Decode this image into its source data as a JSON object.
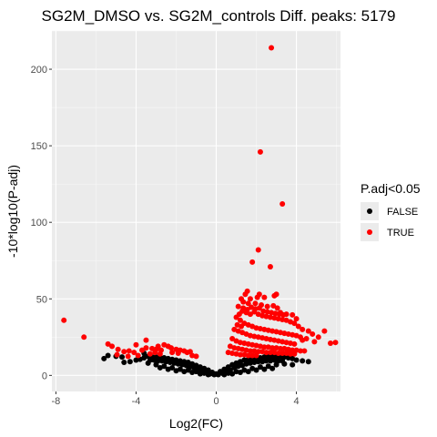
{
  "chart_data": {
    "type": "scatter",
    "title": "SG2M_DMSO vs. SG2M_controls Diff. peaks: 5179",
    "xlabel": "Log2(FC)",
    "ylabel": "-10*log10(P-adj)",
    "xlim": [
      -8.2,
      6.2
    ],
    "ylim": [
      -10.5,
      225
    ],
    "xticks": [
      -8,
      -4,
      0,
      4
    ],
    "yticks": [
      0,
      50,
      100,
      150,
      200
    ],
    "grid": true,
    "background": "#ebebeb",
    "legend": {
      "title": "P.adj<0.05",
      "placement": "right",
      "entries": [
        "FALSE",
        "TRUE"
      ]
    },
    "series": [
      {
        "name": "FALSE",
        "color": "#000000",
        "points": [
          [
            0.0,
            1.0
          ],
          [
            0.2,
            2.5
          ],
          [
            -0.2,
            2.0
          ],
          [
            0.4,
            4.0
          ],
          [
            -0.4,
            3.5
          ],
          [
            0.6,
            5.5
          ],
          [
            -0.6,
            4.5
          ],
          [
            0.8,
            7.0
          ],
          [
            -0.8,
            5.5
          ],
          [
            1.0,
            8.0
          ],
          [
            -1.0,
            6.5
          ],
          [
            1.2,
            9.0
          ],
          [
            -1.2,
            7.5
          ],
          [
            1.4,
            10.0
          ],
          [
            -1.4,
            8.5
          ],
          [
            1.6,
            10.5
          ],
          [
            -1.6,
            9.0
          ],
          [
            1.8,
            11.0
          ],
          [
            -1.8,
            9.5
          ],
          [
            2.0,
            11.5
          ],
          [
            -2.0,
            10.0
          ],
          [
            2.2,
            11.5
          ],
          [
            -2.2,
            10.5
          ],
          [
            2.4,
            12.0
          ],
          [
            -2.4,
            11.0
          ],
          [
            2.6,
            12.0
          ],
          [
            -2.6,
            11.5
          ],
          [
            2.8,
            12.5
          ],
          [
            -2.8,
            11.5
          ],
          [
            3.0,
            12.0
          ],
          [
            -3.0,
            12.0
          ],
          [
            3.2,
            12.5
          ],
          [
            -3.2,
            12.0
          ],
          [
            3.4,
            12.0
          ],
          [
            -3.4,
            12.5
          ],
          [
            3.6,
            11.5
          ],
          [
            -3.6,
            11.5
          ],
          [
            3.8,
            11.0
          ],
          [
            -3.8,
            10.5
          ],
          [
            4.0,
            10.0
          ],
          [
            -4.0,
            10.0
          ],
          [
            4.3,
            9.5
          ],
          [
            -4.3,
            9.0
          ],
          [
            4.6,
            9.0
          ],
          [
            -4.6,
            8.5
          ],
          [
            3.8,
            7.0
          ],
          [
            -5.4,
            13.0
          ],
          [
            -5.6,
            11.0
          ],
          [
            -3.6,
            14.5
          ],
          [
            -5.0,
            12.5
          ],
          [
            -4.7,
            12.0
          ],
          [
            0.3,
            1.5
          ],
          [
            -0.3,
            1.0
          ],
          [
            0.5,
            3.0
          ],
          [
            -0.5,
            2.5
          ],
          [
            0.7,
            3.5
          ],
          [
            -0.7,
            3.0
          ],
          [
            0.9,
            5.0
          ],
          [
            -0.9,
            4.0
          ],
          [
            1.1,
            6.0
          ],
          [
            -1.1,
            5.0
          ],
          [
            1.3,
            6.5
          ],
          [
            -1.3,
            5.5
          ],
          [
            1.5,
            7.5
          ],
          [
            -1.5,
            6.5
          ],
          [
            1.7,
            8.0
          ],
          [
            -1.7,
            7.0
          ],
          [
            1.9,
            8.5
          ],
          [
            -1.9,
            7.5
          ],
          [
            2.1,
            9.0
          ],
          [
            -2.1,
            8.0
          ],
          [
            2.3,
            9.0
          ],
          [
            -2.3,
            8.5
          ],
          [
            2.5,
            9.5
          ],
          [
            -2.5,
            9.0
          ],
          [
            2.7,
            9.5
          ],
          [
            -2.7,
            9.5
          ],
          [
            2.9,
            10.0
          ],
          [
            -2.9,
            9.5
          ],
          [
            3.1,
            9.5
          ],
          [
            -3.1,
            10.0
          ],
          [
            3.3,
            9.5
          ],
          [
            -3.3,
            10.0
          ],
          [
            0.1,
            0.5
          ],
          [
            -0.1,
            0.5
          ],
          [
            0.6,
            1.5
          ],
          [
            -0.6,
            1.5
          ],
          [
            1.0,
            2.5
          ],
          [
            -1.0,
            2.5
          ],
          [
            1.4,
            3.5
          ],
          [
            -1.4,
            3.5
          ],
          [
            1.8,
            4.5
          ],
          [
            -1.8,
            4.0
          ],
          [
            2.2,
            5.5
          ],
          [
            -2.2,
            5.0
          ],
          [
            2.6,
            6.0
          ],
          [
            -2.6,
            6.0
          ],
          [
            3.0,
            7.0
          ],
          [
            -3.0,
            7.0
          ],
          [
            3.4,
            7.5
          ],
          [
            -3.4,
            8.0
          ],
          [
            0.8,
            1.0
          ],
          [
            -0.8,
            1.0
          ],
          [
            1.2,
            2.0
          ],
          [
            -1.2,
            2.0
          ],
          [
            1.6,
            2.5
          ],
          [
            -1.6,
            2.5
          ],
          [
            2.0,
            3.5
          ],
          [
            -2.0,
            3.0
          ],
          [
            2.4,
            4.0
          ],
          [
            -2.4,
            4.0
          ],
          [
            2.8,
            4.5
          ],
          [
            -2.8,
            5.0
          ],
          [
            0.4,
            0.5
          ],
          [
            -0.4,
            0.5
          ]
        ]
      },
      {
        "name": "TRUE",
        "color": "#ff0000",
        "points": [
          [
            2.75,
            214.0
          ],
          [
            2.2,
            146.0
          ],
          [
            3.3,
            112.0
          ],
          [
            2.1,
            82.0
          ],
          [
            1.8,
            74.0
          ],
          [
            2.7,
            71.0
          ],
          [
            1.55,
            55.0
          ],
          [
            1.45,
            53.0
          ],
          [
            2.15,
            53.0
          ],
          [
            2.05,
            51.0
          ],
          [
            2.4,
            51.0
          ],
          [
            3.0,
            53.0
          ],
          [
            2.9,
            52.0
          ],
          [
            1.7,
            50.0
          ],
          [
            1.25,
            50.0
          ],
          [
            1.35,
            48.0
          ],
          [
            1.6,
            47.0
          ],
          [
            1.95,
            47.0
          ],
          [
            2.25,
            46.0
          ],
          [
            2.55,
            45.0
          ],
          [
            2.85,
            45.5
          ],
          [
            3.05,
            44.0
          ],
          [
            1.1,
            45.0
          ],
          [
            1.3,
            42.0
          ],
          [
            1.5,
            41.0
          ],
          [
            1.7,
            40.0
          ],
          [
            1.9,
            41.5
          ],
          [
            2.1,
            40.0
          ],
          [
            2.3,
            39.0
          ],
          [
            2.5,
            38.5
          ],
          [
            2.7,
            38.0
          ],
          [
            2.9,
            37.5
          ],
          [
            3.1,
            37.0
          ],
          [
            3.3,
            36.5
          ],
          [
            3.5,
            36.0
          ],
          [
            3.7,
            35.0
          ],
          [
            3.9,
            34.0
          ],
          [
            4.1,
            32.0
          ],
          [
            4.3,
            30.0
          ],
          [
            3.5,
            40.0
          ],
          [
            3.8,
            39.5
          ],
          [
            4.0,
            37.0
          ],
          [
            3.2,
            41.0
          ],
          [
            4.6,
            29.0
          ],
          [
            4.8,
            27.0
          ],
          [
            5.4,
            29.0
          ],
          [
            5.1,
            25.0
          ],
          [
            5.7,
            21.0
          ],
          [
            5.95,
            21.5
          ],
          [
            4.5,
            24.0
          ],
          [
            4.9,
            22.0
          ],
          [
            4.3,
            23.0
          ],
          [
            1.0,
            38.0
          ],
          [
            1.2,
            36.0
          ],
          [
            1.4,
            34.0
          ],
          [
            1.6,
            33.0
          ],
          [
            1.8,
            32.0
          ],
          [
            2.0,
            31.0
          ],
          [
            2.2,
            30.5
          ],
          [
            2.4,
            30.0
          ],
          [
            2.6,
            29.5
          ],
          [
            2.8,
            29.0
          ],
          [
            3.0,
            28.5
          ],
          [
            3.2,
            28.0
          ],
          [
            3.4,
            27.5
          ],
          [
            3.6,
            27.0
          ],
          [
            3.8,
            26.5
          ],
          [
            4.0,
            26.0
          ],
          [
            4.2,
            25.0
          ],
          [
            0.9,
            30.0
          ],
          [
            1.1,
            29.0
          ],
          [
            1.3,
            28.0
          ],
          [
            1.5,
            27.0
          ],
          [
            1.7,
            26.0
          ],
          [
            1.9,
            25.5
          ],
          [
            2.1,
            25.0
          ],
          [
            2.3,
            24.5
          ],
          [
            2.5,
            24.0
          ],
          [
            2.7,
            23.5
          ],
          [
            2.9,
            23.0
          ],
          [
            3.1,
            22.5
          ],
          [
            3.3,
            22.0
          ],
          [
            3.5,
            21.5
          ],
          [
            3.7,
            21.0
          ],
          [
            3.9,
            20.5
          ],
          [
            0.8,
            24.0
          ],
          [
            1.0,
            22.5
          ],
          [
            1.2,
            21.5
          ],
          [
            1.4,
            21.0
          ],
          [
            1.6,
            20.5
          ],
          [
            1.8,
            20.0
          ],
          [
            2.0,
            19.5
          ],
          [
            2.2,
            19.0
          ],
          [
            2.4,
            18.5
          ],
          [
            2.6,
            18.5
          ],
          [
            2.8,
            18.0
          ],
          [
            3.0,
            18.0
          ],
          [
            3.2,
            17.5
          ],
          [
            3.4,
            17.5
          ],
          [
            3.6,
            17.0
          ],
          [
            3.8,
            16.5
          ],
          [
            4.0,
            16.5
          ],
          [
            4.2,
            16.0
          ],
          [
            4.4,
            16.0
          ],
          [
            0.7,
            19.0
          ],
          [
            0.9,
            18.0
          ],
          [
            1.1,
            17.5
          ],
          [
            1.3,
            17.0
          ],
          [
            1.5,
            16.5
          ],
          [
            1.7,
            16.0
          ],
          [
            1.9,
            16.0
          ],
          [
            2.1,
            15.5
          ],
          [
            2.3,
            15.5
          ],
          [
            2.5,
            15.0
          ],
          [
            2.7,
            15.0
          ],
          [
            2.9,
            15.0
          ],
          [
            3.1,
            14.5
          ],
          [
            3.3,
            14.5
          ],
          [
            3.5,
            14.5
          ],
          [
            3.7,
            14.0
          ],
          [
            3.9,
            14.0
          ],
          [
            0.6,
            15.0
          ],
          [
            0.8,
            14.5
          ],
          [
            1.0,
            14.0
          ],
          [
            1.2,
            13.5
          ],
          [
            1.4,
            13.5
          ],
          [
            1.6,
            13.0
          ],
          [
            1.8,
            13.0
          ],
          [
            2.0,
            13.0
          ],
          [
            1.35,
            44.0
          ],
          [
            1.55,
            43.0
          ],
          [
            1.75,
            44.5
          ],
          [
            1.95,
            43.5
          ],
          [
            2.15,
            44.0
          ],
          [
            2.35,
            42.0
          ],
          [
            2.55,
            41.5
          ],
          [
            2.75,
            41.0
          ],
          [
            2.95,
            40.5
          ],
          [
            3.15,
            40.0
          ],
          [
            3.35,
            39.5
          ],
          [
            1.15,
            40.0
          ],
          [
            1.05,
            33.0
          ],
          [
            1.25,
            32.0
          ],
          [
            -7.6,
            36.0
          ],
          [
            -6.6,
            25.0
          ],
          [
            -5.4,
            20.5
          ],
          [
            -5.2,
            19.0
          ],
          [
            -4.9,
            17.0
          ],
          [
            -4.6,
            15.5
          ],
          [
            -4.35,
            16.0
          ],
          [
            -4.1,
            15.0
          ],
          [
            -4.0,
            20.0
          ],
          [
            -3.5,
            18.0
          ],
          [
            -3.5,
            23.0
          ],
          [
            -3.2,
            17.5
          ],
          [
            -3.0,
            17.0
          ],
          [
            -2.75,
            16.5
          ],
          [
            -2.6,
            20.0
          ],
          [
            -2.4,
            19.0
          ],
          [
            -2.25,
            18.0
          ],
          [
            -2.0,
            17.0
          ],
          [
            -1.8,
            16.5
          ],
          [
            -1.6,
            16.0
          ],
          [
            -1.45,
            15.0
          ],
          [
            -1.3,
            15.5
          ],
          [
            -2.2,
            15.0
          ],
          [
            -1.9,
            14.5
          ],
          [
            -2.8,
            14.0
          ],
          [
            -3.3,
            14.0
          ],
          [
            -3.9,
            13.0
          ],
          [
            -4.4,
            12.5
          ],
          [
            -3.7,
            16.5
          ],
          [
            -2.9,
            19.0
          ],
          [
            -3.05,
            15.0
          ],
          [
            -4.95,
            13.5
          ],
          [
            -1.2,
            13.0
          ],
          [
            -1.0,
            12.5
          ]
        ]
      }
    ]
  }
}
